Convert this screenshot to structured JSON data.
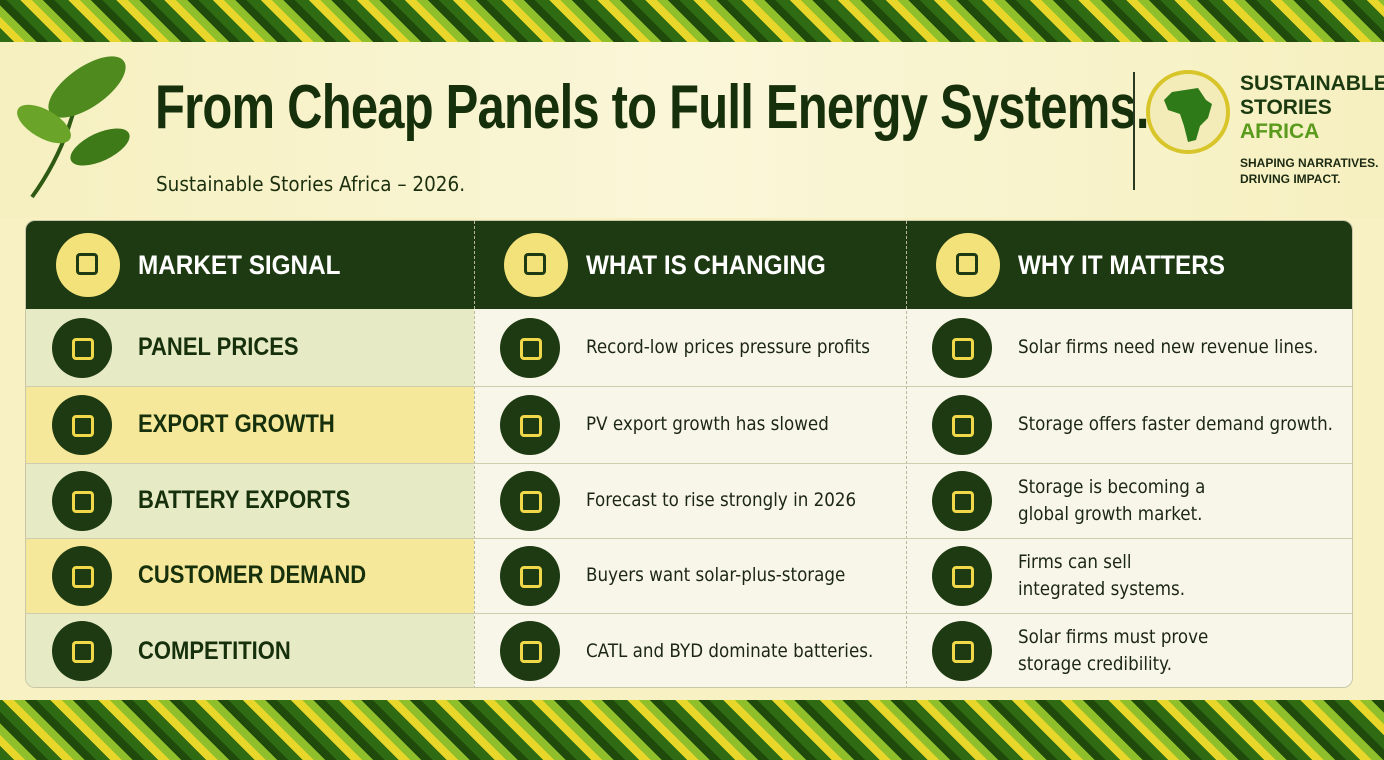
{
  "header": {
    "title": "From Cheap Panels to Full Energy Systems.",
    "subtitle": "Sustainable Stories Africa – 2026."
  },
  "logo": {
    "name": [
      "SUSTAINABLE",
      "STORIES",
      "AFRICA"
    ],
    "tagline": [
      "SHAPING NARRATIVES.",
      "DRIVING IMPACT."
    ]
  },
  "table": {
    "columns": [
      "MARKET SIGNAL",
      "WHAT IS CHANGING",
      "WHY IT MATTERS"
    ],
    "rows": [
      [
        "PANEL PRICES",
        "Record-low prices pressure profits",
        [
          "Solar firms need new revenue lines."
        ]
      ],
      [
        "EXPORT GROWTH",
        "PV export growth has slowed",
        [
          "Storage offers faster demand growth."
        ]
      ],
      [
        "BATTERY EXPORTS",
        "Forecast to rise strongly in 2026",
        [
          "Storage is becoming a",
          "global growth market."
        ]
      ],
      [
        "CUSTOMER DEMAND",
        "Buyers want solar-plus-storage",
        [
          "Firms can sell",
          "integrated systems."
        ]
      ],
      [
        "COMPETITION",
        "CATL and BYD dominate batteries.",
        [
          "Solar firms must prove",
          "storage credibility."
        ]
      ]
    ]
  }
}
